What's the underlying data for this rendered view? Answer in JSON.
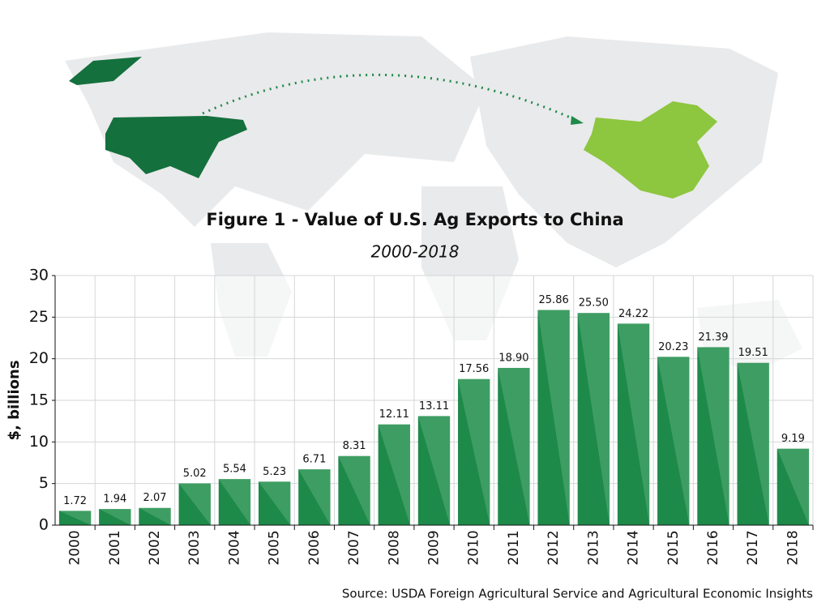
{
  "chart_data": {
    "type": "bar",
    "title": "Figure 1 - Value of U.S. Ag Exports to China",
    "subtitle": "2000-2018",
    "y_label": "$, billions",
    "source": "Source: USDA Foreign Agricultural Service and Agricultural Economic Insights",
    "categories": [
      "2000",
      "2001",
      "2002",
      "2003",
      "2004",
      "2005",
      "2006",
      "2007",
      "2008",
      "2009",
      "2010",
      "2011",
      "2012",
      "2013",
      "2014",
      "2015",
      "2016",
      "2017",
      "2018"
    ],
    "values": [
      1.72,
      1.94,
      2.07,
      5.02,
      5.54,
      5.23,
      6.71,
      8.31,
      12.11,
      13.11,
      17.56,
      18.9,
      25.86,
      25.5,
      24.22,
      20.23,
      21.39,
      19.51,
      9.19
    ],
    "value_labels": [
      "1.72",
      "1.94",
      "2.07",
      "5.02",
      "5.54",
      "5.23",
      "6.71",
      "8.31",
      "12.11",
      "13.11",
      "17.56",
      "18.90",
      "25.86",
      "25.50",
      "24.22",
      "20.23",
      "21.39",
      "19.51",
      "9.19"
    ],
    "color": "#1d8a4a",
    "ylim": [
      0,
      30
    ],
    "yticks": [
      0,
      5,
      10,
      15,
      20,
      25,
      30
    ],
    "grid": true
  }
}
